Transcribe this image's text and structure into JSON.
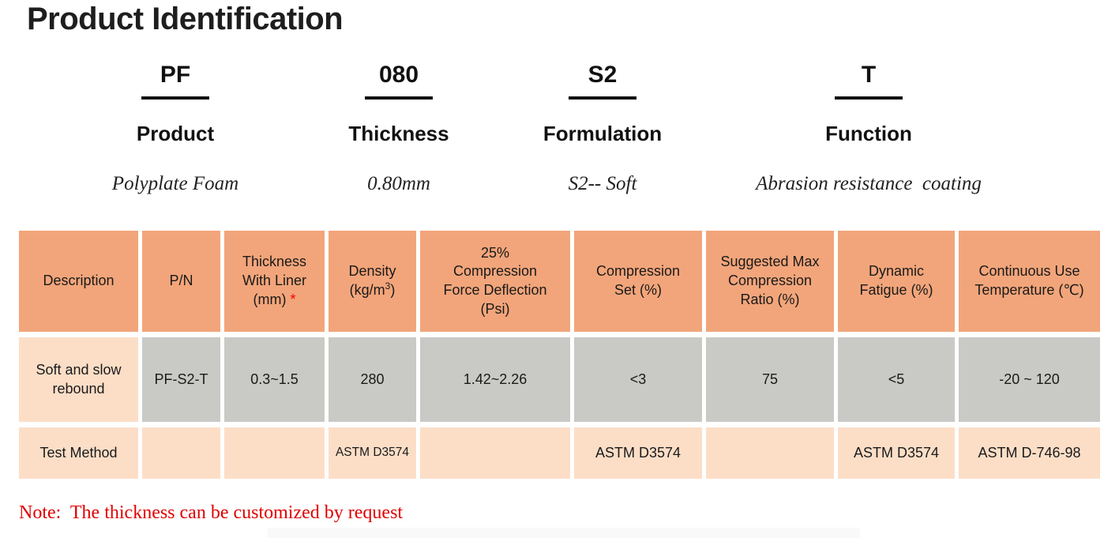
{
  "title": "Product Identification",
  "code_breakdown": [
    {
      "code": "PF",
      "label": "Product",
      "description": "Polyplate Foam"
    },
    {
      "code": "080",
      "label": "Thickness",
      "description": "0.80mm"
    },
    {
      "code": "S2",
      "label": "Formulation",
      "description": "S2-- Soft"
    },
    {
      "code": "T",
      "label": "Function",
      "description": "Abrasion resistance  coating"
    }
  ],
  "table": {
    "headers": [
      {
        "label": "Description"
      },
      {
        "label": "P/N"
      },
      {
        "label": "Thickness\nWith Liner\n(mm)",
        "asterisk": "*"
      },
      {
        "label": "Density",
        "unit_prefix": "(kg/m",
        "unit_sup": "3",
        "unit_suffix": ")"
      },
      {
        "label": "25%\nCompression\nForce Deflection\n(Psi)"
      },
      {
        "label": "Compression\nSet (%)"
      },
      {
        "label": "Suggested Max\nCompression\nRatio (%)"
      },
      {
        "label": "Dynamic\nFatigue (%)"
      },
      {
        "label": "Continuous Use\nTemperature (℃)"
      }
    ],
    "data_row": {
      "description": "Soft and slow\nrebound",
      "pn": "PF-S2-T",
      "thickness_range": "0.3~1.5",
      "density": "280",
      "cfd_range": "1.42~2.26",
      "compression_set": "<3",
      "max_compression_ratio": "75",
      "dynamic_fatigue": "<5",
      "temperature_range": "-20 ~ 120"
    },
    "test_method_row": {
      "label": "Test Method",
      "pn": "",
      "thickness": "",
      "density": "ASTM D3574",
      "cfd": "",
      "compression_set": "ASTM D3574",
      "max_compression_ratio": "",
      "dynamic_fatigue": "ASTM D3574",
      "temperature": "ASTM D-746-98"
    }
  },
  "note": "Note:  The thickness can be customized by request",
  "colors": {
    "header_orange": "#F2A57A",
    "cell_gray": "#C9C9C5",
    "cell_peach": "#FCDEC7",
    "accent_red": "#E10000"
  }
}
